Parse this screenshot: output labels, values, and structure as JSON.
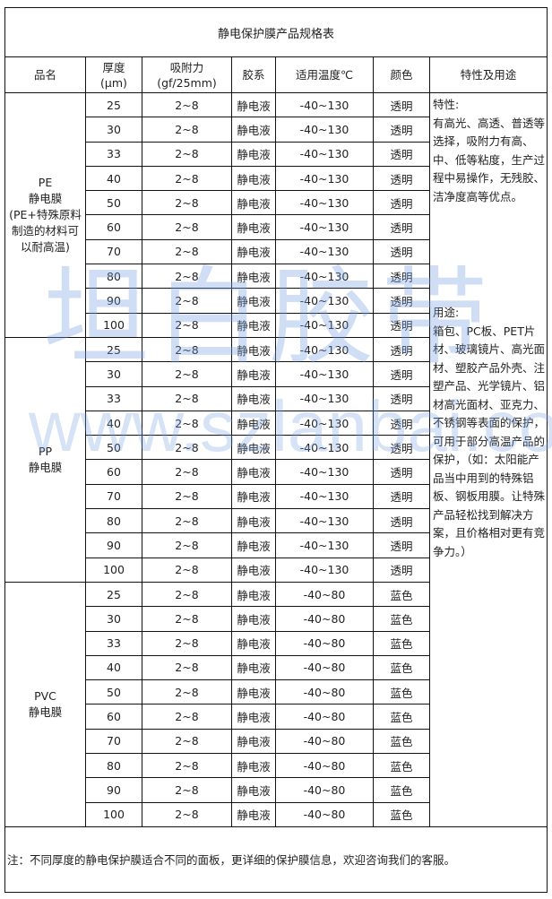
{
  "title": "静电保护膜产品规格表",
  "headers": {
    "name": "品名",
    "thickness": "厚度",
    "thickness_unit": "(μm)",
    "adhesion": "吸附力",
    "adhesion_unit": "(gf/25mm)",
    "glue": "胶系",
    "temp": "适用温度℃",
    "color": "颜色",
    "features": "特性及用途"
  },
  "groups": [
    {
      "name_lines": [
        "PE",
        "静电膜",
        "(PE+特殊原料",
        "制造的材料可",
        "以耐高温)"
      ],
      "adhesion": "2~8",
      "glue": "静电液",
      "temp": "-40~130",
      "color": "透明",
      "thicknesses": [
        "25",
        "30",
        "33",
        "40",
        "50",
        "60",
        "70",
        "80",
        "90",
        "100"
      ]
    },
    {
      "name_lines": [
        "PP",
        "静电膜"
      ],
      "adhesion": "2~8",
      "glue": "静电液",
      "temp": "-40~130",
      "color": "透明",
      "thicknesses": [
        "25",
        "30",
        "33",
        "40",
        "50",
        "60",
        "70",
        "80",
        "90",
        "100"
      ]
    },
    {
      "name_lines": [
        "PVC",
        "静电膜"
      ],
      "adhesion": "2~8",
      "glue": "静电液",
      "temp": "-40~80",
      "color": "蓝色",
      "thicknesses": [
        "25",
        "30",
        "33",
        "40",
        "50",
        "60",
        "70",
        "80",
        "90",
        "100"
      ]
    }
  ],
  "features": {
    "label": "特性:",
    "text": "有高光、高透、普透等选择，吸附力有高、中、低等粘度，生产过程中易操作，无残胶、洁净度高等优点。"
  },
  "usage": {
    "label": "用途:",
    "text": "箱包、PC板、PET片材、玻璃镜片、高光面材、塑胶产品外壳、注塑产品、光学镜片、铝材高光面材、亚克力、不锈钢等表面的保护，可用于部分高温产品的保护，（如：太阳能产品当中用到的特殊铝板、钢板用膜。让特殊产品轻松找到解决方案，且价格相对更有竞争力。）"
  },
  "note": "注：不同厚度的静电保护膜适合不同的面板，更详细的保护膜信息，欢迎咨询我们的客服。",
  "watermark": {
    "brand": "坦白胶带",
    "url": "www.szlanbai.com",
    "color": "#78a0e1"
  }
}
